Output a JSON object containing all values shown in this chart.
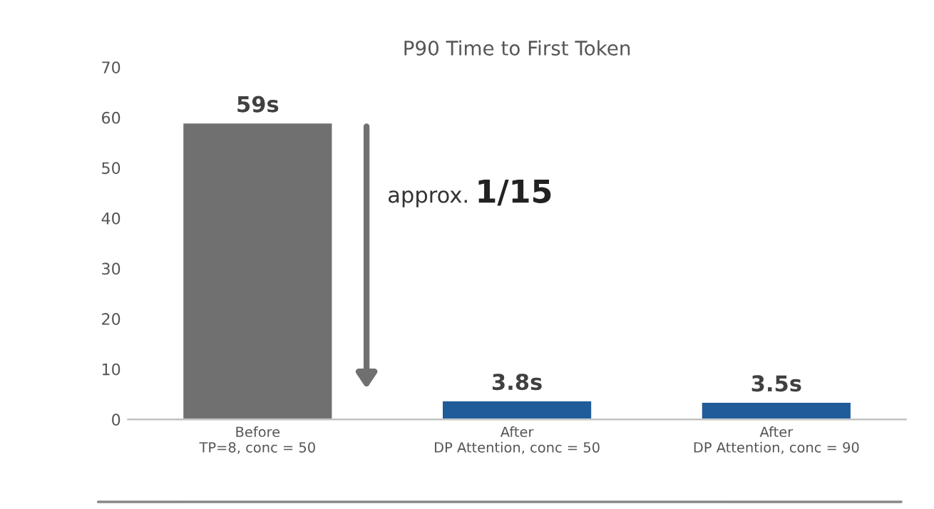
{
  "chart_data": {
    "type": "bar",
    "title": "P90 Time to First Token",
    "categories": [
      "Before\nTP=8, conc = 50",
      "After\nDP Attention, conc = 50",
      "After\nDP Attention, conc = 90"
    ],
    "values": [
      59,
      3.8,
      3.5
    ],
    "colors": [
      "#707070",
      "#1f5c99",
      "#1f5c99"
    ],
    "value_labels": [
      "59s",
      "3.8s",
      "3.5s"
    ],
    "ylim": [
      0,
      70
    ],
    "yticks": [
      0,
      10,
      20,
      30,
      40,
      50,
      60,
      70
    ],
    "grid": false,
    "legend": false,
    "annotations": [
      "approx.",
      "1/15"
    ]
  }
}
